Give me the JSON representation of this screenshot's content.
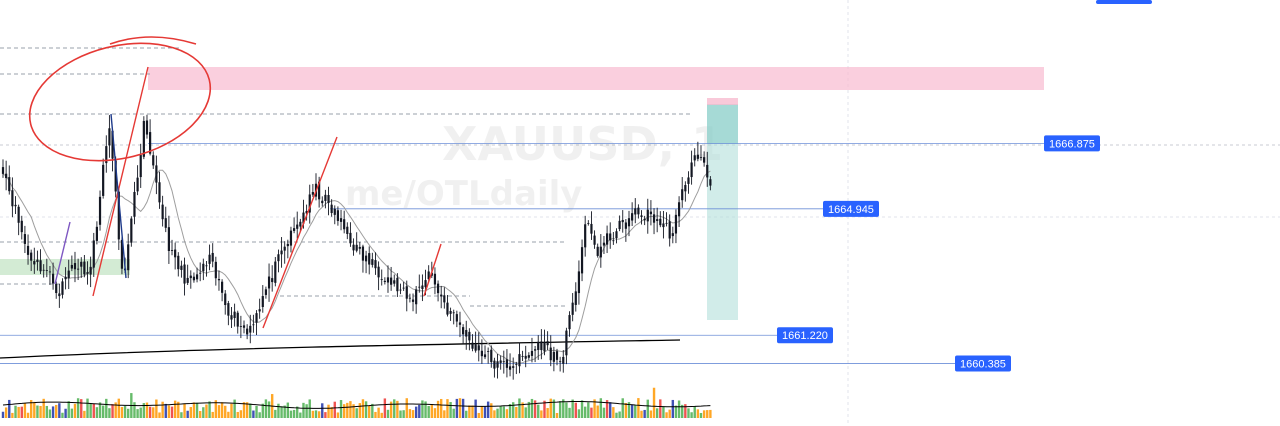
{
  "watermark": {
    "symbol": "XAUUSD, 1",
    "handle": "me/OTLdaily"
  },
  "colors": {
    "background": "#ffffff",
    "bull": "#26a69a",
    "bear": "#ef5350",
    "candle": "#131722",
    "level_line": "#6d8fd8",
    "label_bg": "#2962ff",
    "supply_zone": "#f8bbd0",
    "demand_zone": "#c8e6c9",
    "target_zone": "#b2dfdb",
    "annotation": "#e53935",
    "moving_average": "#9e9e9e",
    "long_ma": "#000000"
  },
  "chart_data": {
    "type": "candlestick",
    "symbol": "XAUUSD",
    "timeframe": "1",
    "ylim": [
      1659.9,
      1671.1
    ],
    "price_labels": [
      {
        "name": "level-1666875",
        "value": 1666.875,
        "text": "1666.875"
      },
      {
        "name": "level-1664945",
        "value": 1664.945,
        "text": "1664.945"
      },
      {
        "name": "level-1661220",
        "value": 1661.22,
        "text": "1661.220"
      },
      {
        "name": "level-1660385",
        "value": 1660.385,
        "text": "1660.385"
      }
    ],
    "waypoints": [
      [
        0,
        1666.2
      ],
      [
        8,
        1663.6
      ],
      [
        14,
        1663.1
      ],
      [
        18,
        1662.5
      ],
      [
        22,
        1663.3
      ],
      [
        28,
        1663.2
      ],
      [
        34,
        1667.5
      ],
      [
        38,
        1663.0
      ],
      [
        40,
        1663.8
      ],
      [
        45,
        1667.4
      ],
      [
        48,
        1666.0
      ],
      [
        54,
        1663.5
      ],
      [
        60,
        1662.7
      ],
      [
        66,
        1663.4
      ],
      [
        72,
        1662.0
      ],
      [
        78,
        1661.3
      ],
      [
        90,
        1663.8
      ],
      [
        100,
        1665.5
      ],
      [
        106,
        1664.8
      ],
      [
        114,
        1663.6
      ],
      [
        122,
        1663.0
      ],
      [
        130,
        1662.2
      ],
      [
        136,
        1663.1
      ],
      [
        142,
        1662.0
      ],
      [
        150,
        1661.0
      ],
      [
        158,
        1660.3
      ],
      [
        166,
        1660.5
      ],
      [
        172,
        1661.0
      ],
      [
        178,
        1660.4
      ],
      [
        182,
        1662.0
      ],
      [
        186,
        1664.5
      ],
      [
        190,
        1663.7
      ],
      [
        196,
        1664.3
      ],
      [
        202,
        1664.8
      ],
      [
        208,
        1664.7
      ],
      [
        214,
        1664.2
      ],
      [
        218,
        1665.8
      ],
      [
        222,
        1666.6
      ],
      [
        226,
        1665.7
      ]
    ]
  }
}
